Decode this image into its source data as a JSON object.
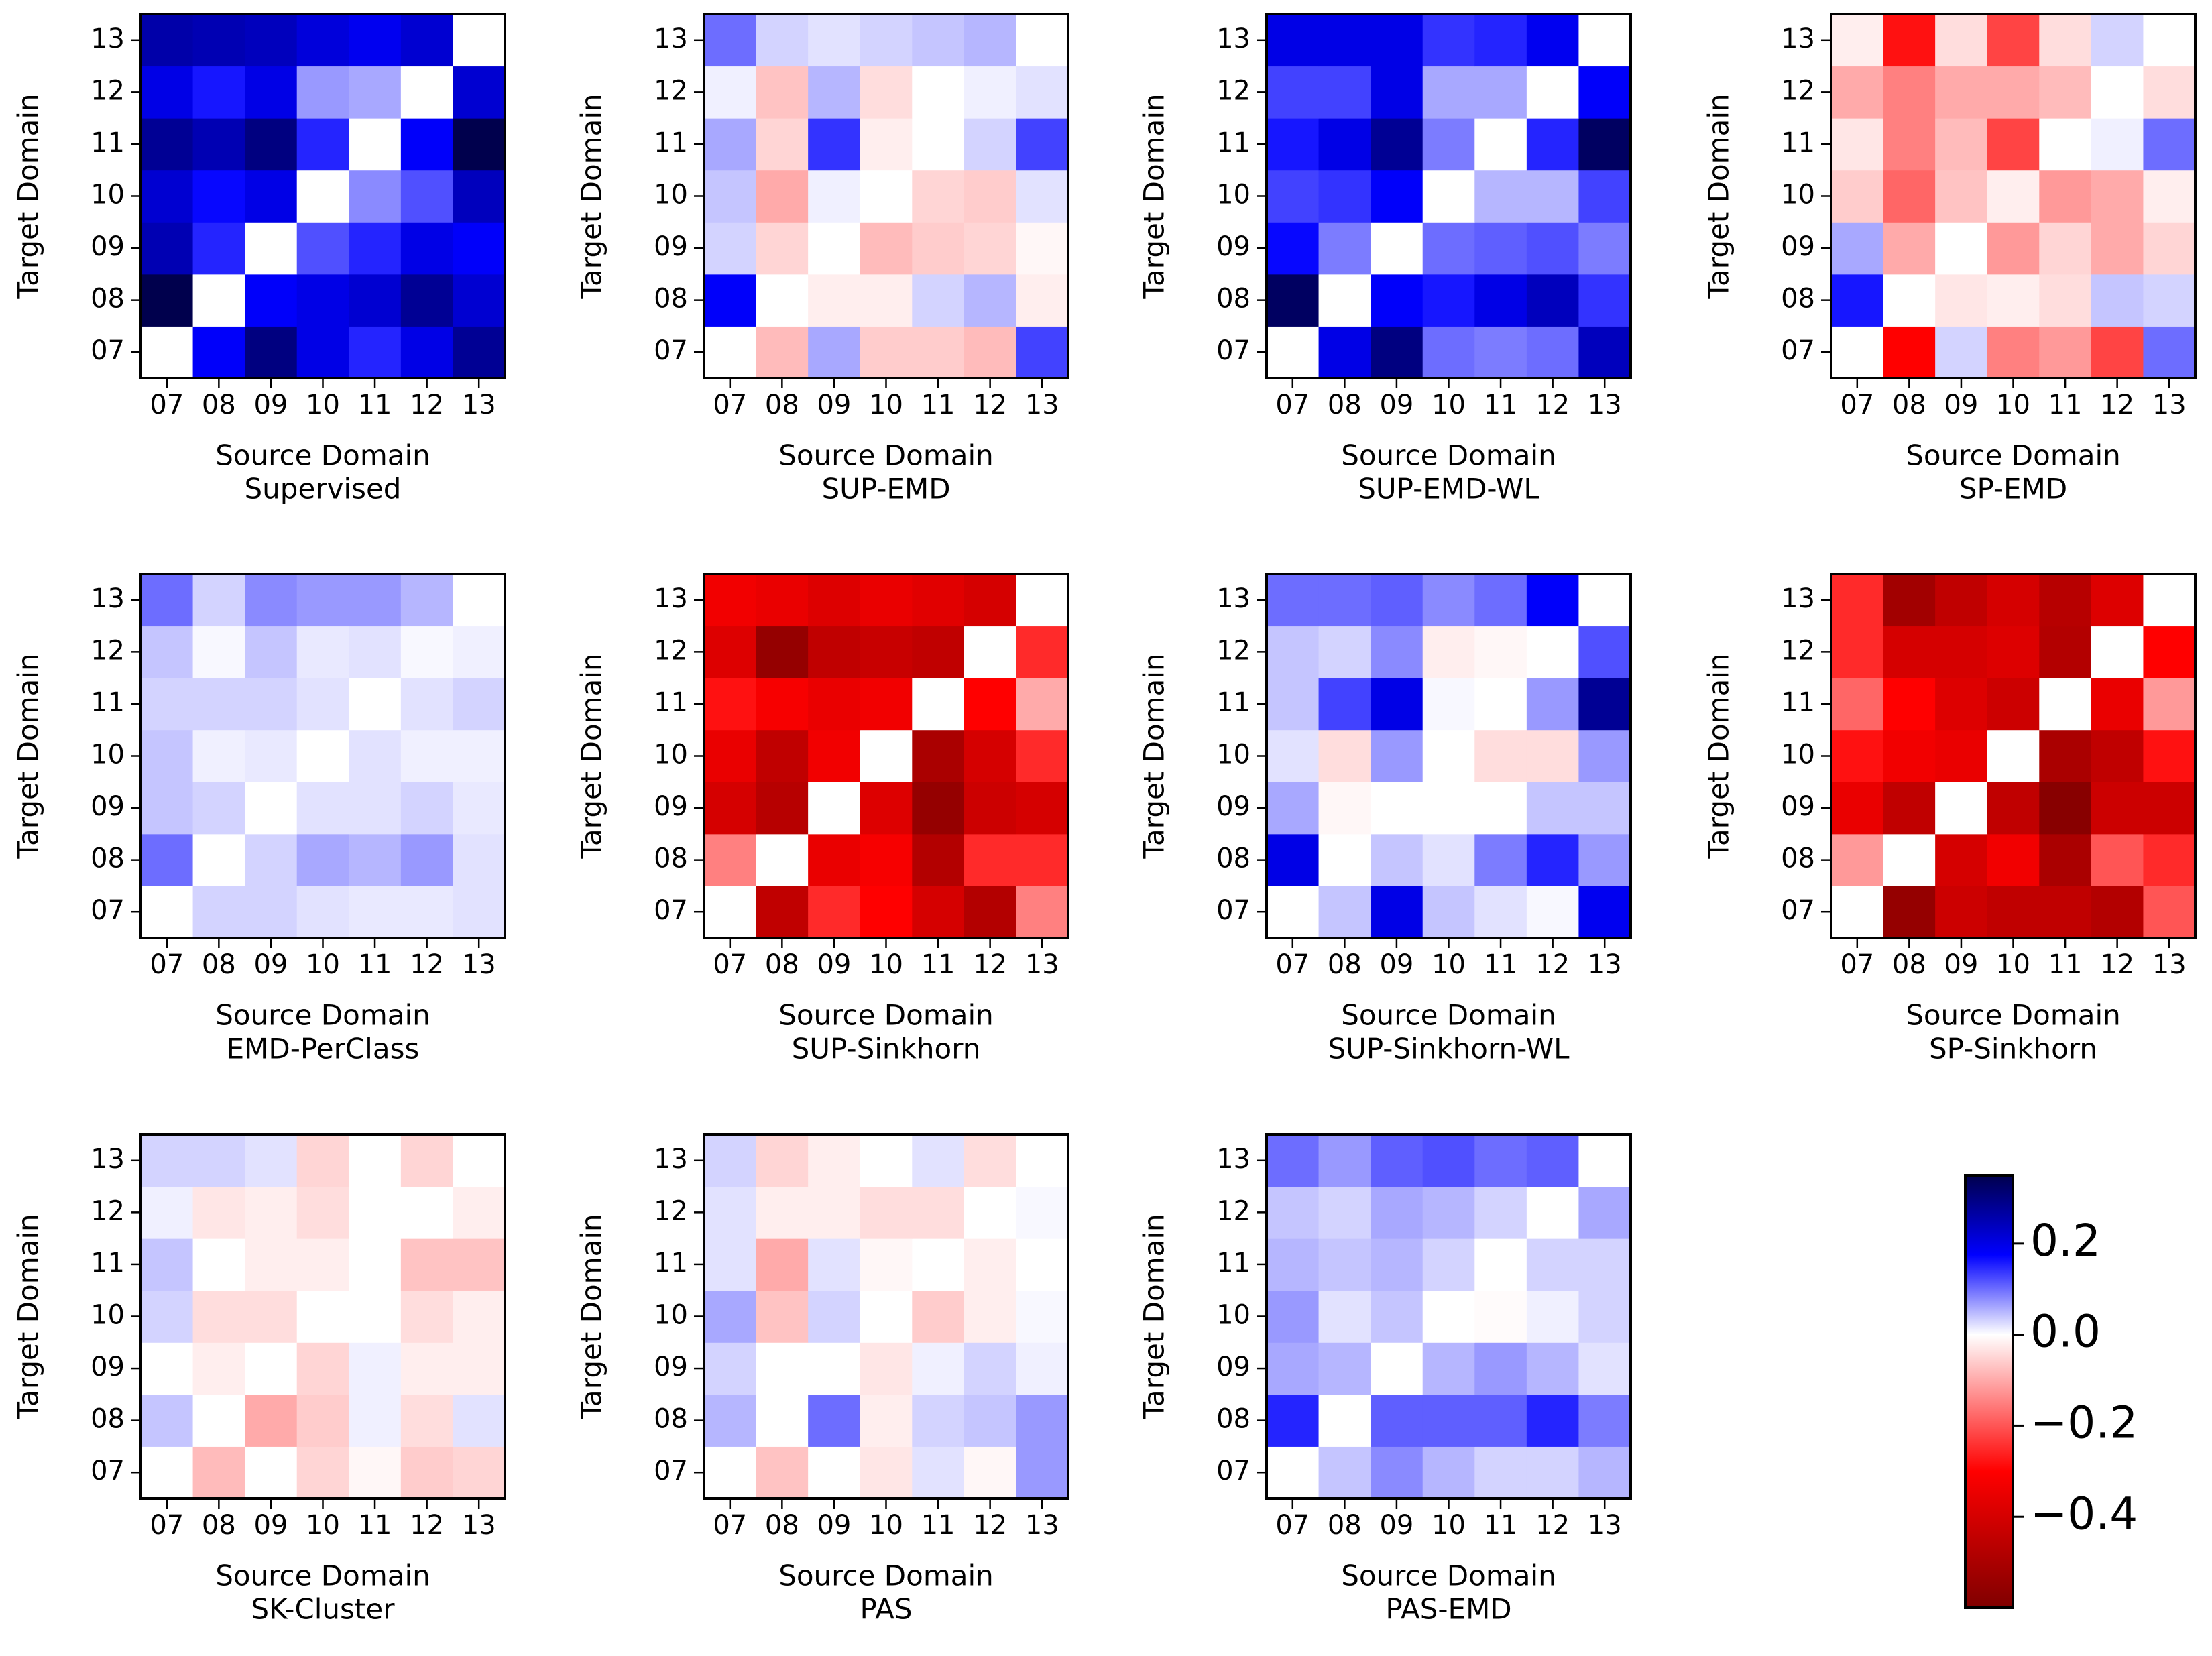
{
  "chart_data": {
    "type": "heatmap",
    "x_label": "Source Domain",
    "y_label": "Target Domain",
    "x_categories": [
      "07",
      "08",
      "09",
      "10",
      "11",
      "12",
      "13"
    ],
    "y_categories": [
      "07",
      "08",
      "09",
      "10",
      "11",
      "12",
      "13"
    ],
    "colormap": [
      "#800000",
      "#ff0000",
      "#ffffff",
      "#0000ff",
      "#00004d"
    ],
    "clim": [
      -0.6,
      0.35
    ],
    "cticks": [
      {
        "value": -0.4,
        "label": "−0.4"
      },
      {
        "value": -0.2,
        "label": "−0.2"
      },
      {
        "value": 0,
        "label": "0.0"
      },
      0.2
    ],
    "panels": [
      {
        "title": "Supervised",
        "values": [
          [
            0,
            0.18,
            0.3,
            0.2,
            0.15,
            0.2,
            0.28
          ],
          [
            0.35,
            0,
            0.18,
            0.2,
            0.22,
            0.28,
            0.22
          ],
          [
            0.25,
            0.15,
            0,
            0.12,
            0.15,
            0.2,
            0.18
          ],
          [
            0.22,
            0.17,
            0.2,
            0,
            0.08,
            0.12,
            0.24
          ],
          [
            0.28,
            0.25,
            0.3,
            0.15,
            0,
            0.18,
            0.35
          ],
          [
            0.2,
            0.16,
            0.2,
            0.07,
            0.06,
            0,
            0.22
          ],
          [
            0.26,
            0.25,
            0.24,
            0.21,
            0.19,
            0.22,
            0
          ]
        ]
      },
      {
        "title": "SUP-EMD",
        "values": [
          [
            0,
            -0.08,
            0.06,
            -0.06,
            -0.06,
            -0.08,
            0.13
          ],
          [
            0.18,
            0,
            -0.02,
            -0.02,
            0.03,
            0.05,
            -0.02
          ],
          [
            0.03,
            -0.05,
            0,
            -0.08,
            -0.06,
            -0.05,
            -0.01
          ],
          [
            0.04,
            -0.1,
            0.01,
            0,
            -0.05,
            -0.06,
            0.02
          ],
          [
            0.06,
            -0.05,
            0.14,
            -0.02,
            0,
            0.03,
            0.13
          ],
          [
            0.01,
            -0.07,
            0.05,
            -0.04,
            0,
            0.01,
            0.02
          ],
          [
            0.1,
            0.03,
            0.02,
            0.03,
            0.04,
            0.05,
            0
          ]
        ]
      },
      {
        "title": "SUP-EMD-WL",
        "values": [
          [
            0,
            0.2,
            0.3,
            0.1,
            0.09,
            0.1,
            0.24
          ],
          [
            0.33,
            0,
            0.18,
            0.16,
            0.2,
            0.24,
            0.14
          ],
          [
            0.17,
            0.09,
            0,
            0.1,
            0.11,
            0.12,
            0.09
          ],
          [
            0.13,
            0.14,
            0.18,
            0,
            0.05,
            0.05,
            0.13
          ],
          [
            0.16,
            0.2,
            0.28,
            0.09,
            0,
            0.15,
            0.33
          ],
          [
            0.13,
            0.13,
            0.2,
            0.06,
            0.06,
            0,
            0.18
          ],
          [
            0.2,
            0.2,
            0.2,
            0.14,
            0.15,
            0.19,
            0
          ]
        ]
      },
      {
        "title": "SP-EMD",
        "values": [
          [
            0,
            -0.3,
            0.03,
            -0.15,
            -0.12,
            -0.22,
            0.1
          ],
          [
            0.16,
            0,
            -0.03,
            -0.02,
            -0.04,
            0.04,
            0.03
          ],
          [
            0.06,
            -0.1,
            0,
            -0.12,
            -0.05,
            -0.1,
            -0.05
          ],
          [
            -0.06,
            -0.18,
            -0.07,
            -0.02,
            -0.12,
            -0.1,
            -0.02
          ],
          [
            -0.03,
            -0.15,
            -0.08,
            -0.22,
            0,
            0.01,
            0.1
          ],
          [
            -0.1,
            -0.15,
            -0.1,
            -0.1,
            -0.08,
            0,
            -0.04
          ],
          [
            -0.02,
            -0.28,
            -0.04,
            -0.22,
            -0.04,
            0.03,
            0
          ]
        ]
      },
      {
        "title": "EMD-PerClass",
        "values": [
          [
            0,
            0.03,
            0.03,
            0.02,
            0.015,
            0.015,
            0.02
          ],
          [
            0.1,
            0,
            0.03,
            0.06,
            0.05,
            0.07,
            0.02
          ],
          [
            0.04,
            0.03,
            0,
            0.02,
            0.02,
            0.03,
            0.015
          ],
          [
            0.04,
            0.01,
            0.015,
            0,
            0.02,
            0.01,
            0.01
          ],
          [
            0.03,
            0.03,
            0.03,
            0.02,
            0,
            0.02,
            0.03
          ],
          [
            0.04,
            0.005,
            0.04,
            0.015,
            0.02,
            0.005,
            0.01
          ],
          [
            0.1,
            0.03,
            0.08,
            0.07,
            0.07,
            0.05,
            0
          ]
        ]
      },
      {
        "title": "SUP-Sinkhorn",
        "values": [
          [
            0,
            -0.45,
            -0.25,
            -0.3,
            -0.4,
            -0.48,
            -0.15
          ],
          [
            -0.15,
            0,
            -0.35,
            -0.32,
            -0.48,
            -0.25,
            -0.25
          ],
          [
            -0.4,
            -0.47,
            0,
            -0.38,
            -0.55,
            -0.42,
            -0.4
          ],
          [
            -0.35,
            -0.45,
            -0.33,
            0,
            -0.5,
            -0.4,
            -0.25
          ],
          [
            -0.28,
            -0.32,
            -0.35,
            -0.33,
            0,
            -0.3,
            -0.1
          ],
          [
            -0.38,
            -0.55,
            -0.45,
            -0.43,
            -0.45,
            0,
            -0.25
          ],
          [
            -0.33,
            -0.35,
            -0.38,
            -0.35,
            -0.37,
            -0.4,
            0
          ]
        ]
      },
      {
        "title": "SUP-Sinkhorn-WL",
        "values": [
          [
            0,
            0.04,
            0.2,
            0.04,
            0.02,
            0.005,
            0.19
          ],
          [
            0.2,
            0,
            0.04,
            0.02,
            0.09,
            0.15,
            0.07
          ],
          [
            0.06,
            -0.01,
            0,
            0,
            0,
            0.04,
            0.04
          ],
          [
            0.02,
            -0.04,
            0.07,
            0,
            -0.04,
            -0.04,
            0.07
          ],
          [
            0.04,
            0.13,
            0.2,
            0.005,
            0,
            0.07,
            0.28
          ],
          [
            0.04,
            0.03,
            0.08,
            -0.02,
            -0.01,
            0,
            0.12
          ],
          [
            0.1,
            0.1,
            0.11,
            0.08,
            0.1,
            0.18,
            0
          ]
        ]
      },
      {
        "title": "SP-Sinkhorn",
        "values": [
          [
            0,
            -0.55,
            -0.42,
            -0.45,
            -0.45,
            -0.48,
            -0.2
          ],
          [
            -0.12,
            0,
            -0.4,
            -0.33,
            -0.5,
            -0.2,
            -0.25
          ],
          [
            -0.35,
            -0.45,
            0,
            -0.45,
            -0.58,
            -0.42,
            -0.42
          ],
          [
            -0.28,
            -0.33,
            -0.35,
            0,
            -0.5,
            -0.45,
            -0.28
          ],
          [
            -0.18,
            -0.3,
            -0.38,
            -0.42,
            0,
            -0.35,
            -0.12
          ],
          [
            -0.25,
            -0.4,
            -0.4,
            -0.38,
            -0.48,
            0,
            -0.3
          ],
          [
            -0.25,
            -0.52,
            -0.45,
            -0.4,
            -0.47,
            -0.38,
            0
          ]
        ]
      },
      {
        "title": "SK-Cluster",
        "values": [
          [
            0,
            -0.08,
            0,
            -0.05,
            -0.01,
            -0.06,
            -0.05
          ],
          [
            0.04,
            0,
            -0.1,
            -0.06,
            0.01,
            -0.04,
            0.02
          ],
          [
            0,
            -0.02,
            0,
            -0.05,
            0.01,
            -0.02,
            -0.02
          ],
          [
            0.03,
            -0.04,
            -0.04,
            0,
            0,
            -0.04,
            -0.02
          ],
          [
            0.04,
            0,
            -0.02,
            -0.02,
            0,
            -0.07,
            -0.07
          ],
          [
            0.01,
            -0.03,
            -0.02,
            -0.04,
            0,
            0,
            -0.02
          ],
          [
            0.03,
            0.03,
            0.02,
            -0.05,
            0,
            -0.05,
            0
          ]
        ]
      },
      {
        "title": "PAS",
        "values": [
          [
            0,
            -0.07,
            0,
            -0.03,
            0.02,
            -0.01,
            0.07
          ],
          [
            0.05,
            0,
            0.1,
            -0.02,
            0.03,
            0.04,
            0.07
          ],
          [
            0.03,
            0,
            0,
            -0.03,
            0.01,
            0.03,
            0.01
          ],
          [
            0.06,
            -0.07,
            0.03,
            0,
            -0.06,
            -0.02,
            0.005
          ],
          [
            0.02,
            -0.1,
            0.02,
            -0.01,
            0,
            -0.02,
            0
          ],
          [
            0.02,
            -0.02,
            -0.02,
            -0.04,
            -0.04,
            0,
            0.005
          ],
          [
            0.03,
            -0.05,
            -0.02,
            0,
            0.02,
            -0.04,
            0
          ]
        ]
      },
      {
        "title": "PAS-EMD",
        "values": [
          [
            0,
            0.04,
            0.08,
            0.05,
            0.03,
            0.03,
            0.05
          ],
          [
            0.15,
            0,
            0.11,
            0.11,
            0.11,
            0.15,
            0.09
          ],
          [
            0.06,
            0.05,
            0,
            0.05,
            0.07,
            0.05,
            0.02
          ],
          [
            0.07,
            0.02,
            0.04,
            0,
            -0.005,
            0.01,
            0.03
          ],
          [
            0.05,
            0.04,
            0.05,
            0.03,
            0,
            0.03,
            0.03
          ],
          [
            0.04,
            0.03,
            0.06,
            0.05,
            0.03,
            0,
            0.06
          ],
          [
            0.1,
            0.07,
            0.11,
            0.12,
            0.1,
            0.11,
            0
          ]
        ]
      }
    ]
  }
}
